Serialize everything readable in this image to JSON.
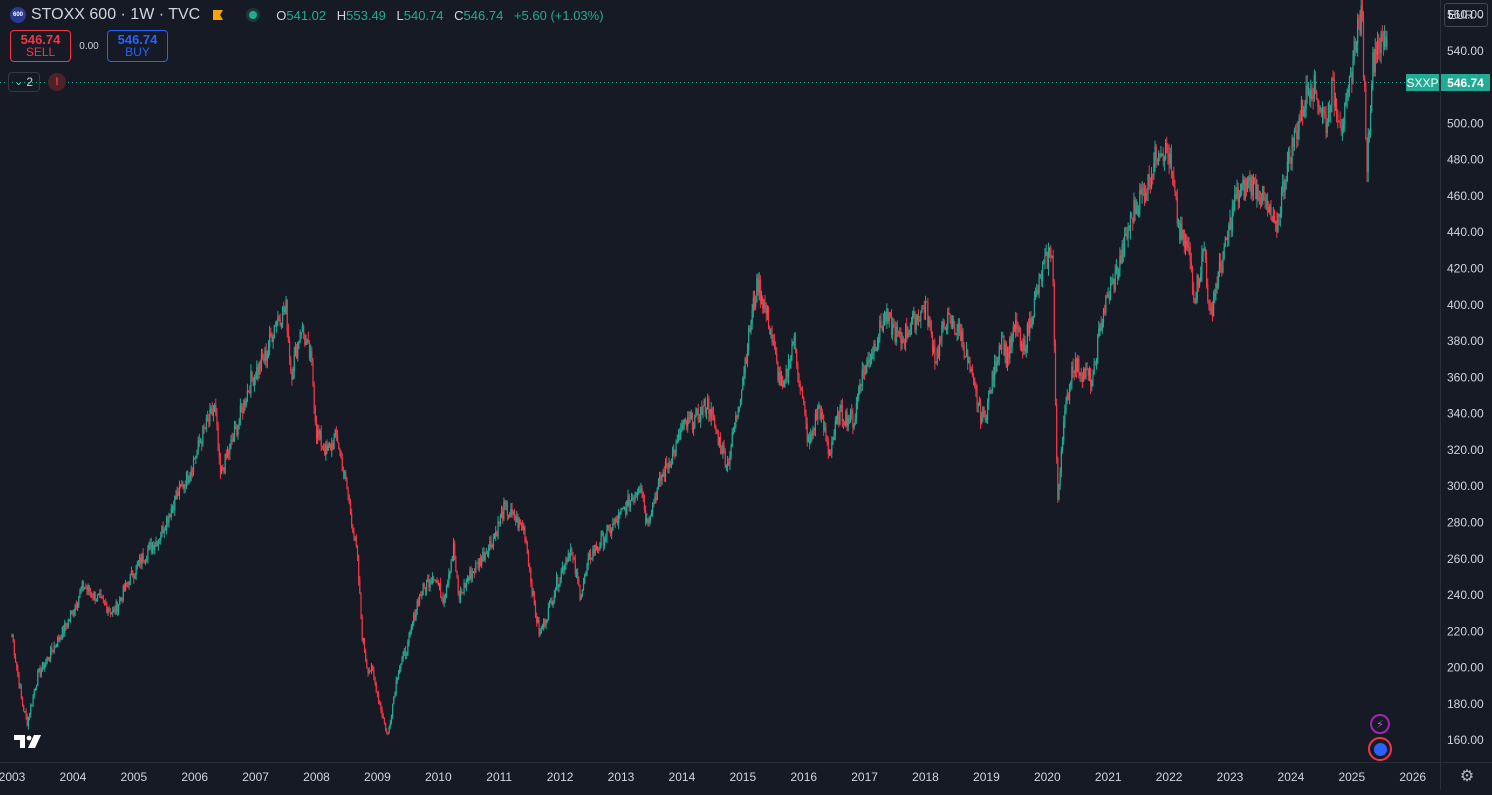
{
  "legend": {
    "symbol_badge": "600",
    "title": "STOXX 600 · 1W · TVC",
    "open_label": "O",
    "open": "541.02",
    "high_label": "H",
    "high": "553.49",
    "low_label": "L",
    "low": "540.74",
    "close_label": "C",
    "close": "546.74",
    "change": "+5.60 (+1.03%)",
    "flag_icon": "flag-icon",
    "status_icon": "market-status-dot-icon"
  },
  "trading": {
    "sell_price": "546.74",
    "sell_label": "SELL",
    "spread": "0.00",
    "buy_price": "546.74",
    "buy_label": "BUY"
  },
  "indicators": {
    "collapsed_count": "2",
    "warning_glyph": "!"
  },
  "currency_selector": {
    "value": "EUR"
  },
  "last_price": {
    "symbol": "SXXP",
    "price": "546.74",
    "color": "#22ab94"
  },
  "colors": {
    "up": "#22ab94",
    "down": "#f23645",
    "background": "#161a25",
    "axis_text": "#d1d4dc",
    "border": "#2a2e39"
  },
  "chart_data": {
    "type": "candlestick",
    "interval": "1W",
    "currency": "EUR",
    "yticks": [
      160,
      180,
      200,
      220,
      240,
      260,
      280,
      300,
      320,
      340,
      360,
      380,
      400,
      420,
      440,
      460,
      480,
      500,
      520,
      540,
      560
    ],
    "ytick_labels": [
      "160.00",
      "180.00",
      "200.00",
      "220.00",
      "240.00",
      "260.00",
      "280.00",
      "300.00",
      "320.00",
      "340.00",
      "360.00",
      "380.00",
      "400.00",
      "420.00",
      "440.00",
      "460.00",
      "480.00",
      "500.00",
      "520.00",
      "540.00",
      "560.00"
    ],
    "xtick_labels": [
      "2003",
      "2004",
      "2005",
      "2006",
      "2007",
      "2008",
      "2009",
      "2010",
      "2011",
      "2012",
      "2013",
      "2014",
      "2015",
      "2016",
      "2017",
      "2018",
      "2019",
      "2020",
      "2021",
      "2022",
      "2023",
      "2024",
      "2025",
      "2026"
    ],
    "x_range": [
      "2003-01",
      "2026-04"
    ],
    "ylim": [
      148,
      568
    ],
    "last_price": 546.74,
    "series": [
      {
        "points": [
          [
            "2003-01",
            218
          ],
          [
            "2003-03",
            180
          ],
          [
            "2003-04",
            170
          ],
          [
            "2003-06",
            195
          ],
          [
            "2003-09",
            210
          ],
          [
            "2003-12",
            225
          ],
          [
            "2004-03",
            245
          ],
          [
            "2004-06",
            238
          ],
          [
            "2004-09",
            230
          ],
          [
            "2004-12",
            248
          ],
          [
            "2005-03",
            262
          ],
          [
            "2005-06",
            272
          ],
          [
            "2005-09",
            292
          ],
          [
            "2005-12",
            308
          ],
          [
            "2006-03",
            332
          ],
          [
            "2006-05",
            343
          ],
          [
            "2006-06",
            305
          ],
          [
            "2006-09",
            330
          ],
          [
            "2006-12",
            358
          ],
          [
            "2007-03",
            372
          ],
          [
            "2007-05",
            392
          ],
          [
            "2007-07",
            398
          ],
          [
            "2007-08",
            362
          ],
          [
            "2007-10",
            388
          ],
          [
            "2007-12",
            368
          ],
          [
            "2008-01",
            330
          ],
          [
            "2008-03",
            318
          ],
          [
            "2008-05",
            328
          ],
          [
            "2008-07",
            298
          ],
          [
            "2008-09",
            262
          ],
          [
            "2008-10",
            218
          ],
          [
            "2008-11",
            200
          ],
          [
            "2008-12",
            198
          ],
          [
            "2009-01",
            186
          ],
          [
            "2009-03",
            162
          ],
          [
            "2009-05",
            198
          ],
          [
            "2009-07",
            212
          ],
          [
            "2009-09",
            238
          ],
          [
            "2009-12",
            252
          ],
          [
            "2010-02",
            238
          ],
          [
            "2010-04",
            266
          ],
          [
            "2010-05",
            238
          ],
          [
            "2010-07",
            250
          ],
          [
            "2010-09",
            258
          ],
          [
            "2010-12",
            272
          ],
          [
            "2011-02",
            288
          ],
          [
            "2011-04",
            282
          ],
          [
            "2011-06",
            276
          ],
          [
            "2011-08",
            232
          ],
          [
            "2011-09",
            218
          ],
          [
            "2011-11",
            234
          ],
          [
            "2011-12",
            244
          ],
          [
            "2012-03",
            266
          ],
          [
            "2012-05",
            240
          ],
          [
            "2012-07",
            262
          ],
          [
            "2012-12",
            280
          ],
          [
            "2013-05",
            302
          ],
          [
            "2013-06",
            280
          ],
          [
            "2013-09",
            305
          ],
          [
            "2013-12",
            322
          ],
          [
            "2014-01",
            332
          ],
          [
            "2014-04",
            338
          ],
          [
            "2014-06",
            346
          ],
          [
            "2014-08",
            328
          ],
          [
            "2014-10",
            312
          ],
          [
            "2014-12",
            342
          ],
          [
            "2015-03",
            398
          ],
          [
            "2015-04",
            412
          ],
          [
            "2015-06",
            392
          ],
          [
            "2015-08",
            362
          ],
          [
            "2015-09",
            352
          ],
          [
            "2015-11",
            382
          ],
          [
            "2015-12",
            362
          ],
          [
            "2016-02",
            322
          ],
          [
            "2016-04",
            344
          ],
          [
            "2016-06",
            318
          ],
          [
            "2016-08",
            340
          ],
          [
            "2016-11",
            336
          ],
          [
            "2016-12",
            358
          ],
          [
            "2017-03",
            378
          ],
          [
            "2017-05",
            394
          ],
          [
            "2017-08",
            380
          ],
          [
            "2017-11",
            392
          ],
          [
            "2018-01",
            400
          ],
          [
            "2018-03",
            370
          ],
          [
            "2018-05",
            392
          ],
          [
            "2018-08",
            384
          ],
          [
            "2018-10",
            360
          ],
          [
            "2018-12",
            338
          ],
          [
            "2019-01",
            342
          ],
          [
            "2019-04",
            384
          ],
          [
            "2019-05",
            370
          ],
          [
            "2019-07",
            390
          ],
          [
            "2019-08",
            372
          ],
          [
            "2019-12",
            418
          ],
          [
            "2020-02",
            432
          ],
          [
            "2020-03",
            290
          ],
          [
            "2020-04",
            330
          ],
          [
            "2020-06",
            368
          ],
          [
            "2020-10",
            358
          ],
          [
            "2020-11",
            380
          ],
          [
            "2020-12",
            396
          ],
          [
            "2021-03",
            420
          ],
          [
            "2021-06",
            452
          ],
          [
            "2021-09",
            468
          ],
          [
            "2021-11",
            488
          ],
          [
            "2022-01",
            482
          ],
          [
            "2022-03",
            440
          ],
          [
            "2022-05",
            428
          ],
          [
            "2022-06",
            404
          ],
          [
            "2022-08",
            432
          ],
          [
            "2022-09",
            390
          ],
          [
            "2022-10",
            408
          ],
          [
            "2022-12",
            430
          ],
          [
            "2023-02",
            458
          ],
          [
            "2023-05",
            468
          ],
          [
            "2023-07",
            462
          ],
          [
            "2023-10",
            440
          ],
          [
            "2023-12",
            474
          ],
          [
            "2024-03",
            506
          ],
          [
            "2024-05",
            524
          ],
          [
            "2024-08",
            500
          ],
          [
            "2024-09",
            520
          ],
          [
            "2024-11",
            500
          ],
          [
            "2024-12",
            508
          ],
          [
            "2025-02",
            552
          ],
          [
            "2025-03",
            558
          ],
          [
            "2025-04",
            478
          ],
          [
            "2025-05",
            530
          ],
          [
            "2025-06",
            546
          ],
          [
            "2025-07",
            542
          ],
          [
            "2025-08",
            546.74
          ]
        ]
      }
    ]
  }
}
